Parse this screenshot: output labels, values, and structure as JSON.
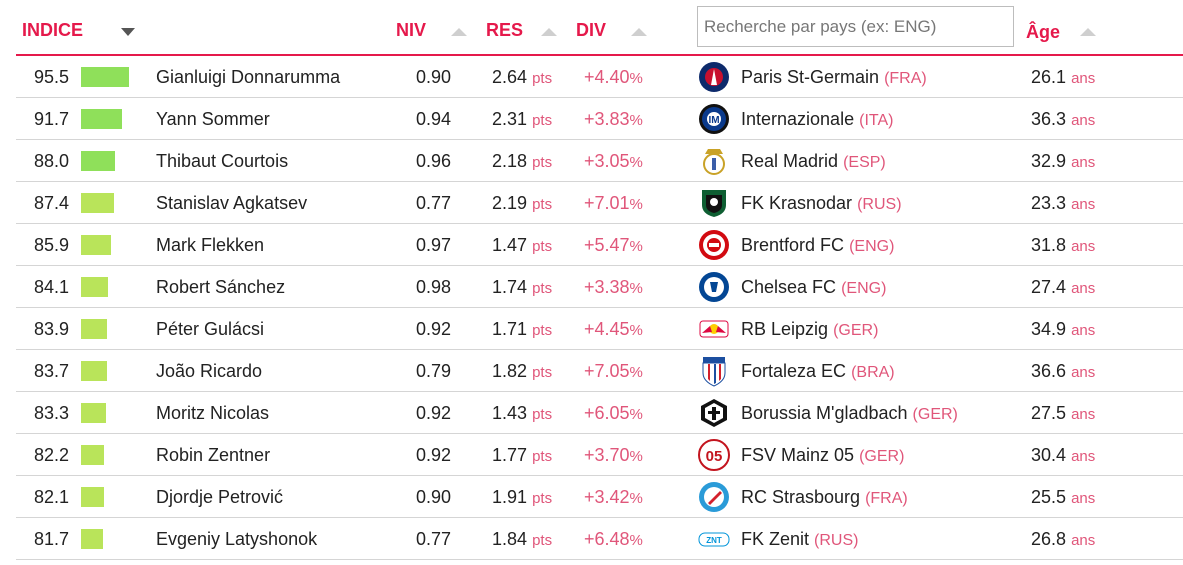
{
  "header": {
    "indice": "INDICE",
    "niv": "NIV",
    "res": "RES",
    "div": "DIV",
    "age": "Âge",
    "search_placeholder": "Recherche par pays (ex: ENG)"
  },
  "units": {
    "pts": "pts",
    "pct": "%",
    "ans": "ans"
  },
  "colors": {
    "accent": "#e5194b",
    "bar_high": "#8fe05a",
    "bar_low": "#b9e45a"
  },
  "rows": [
    {
      "index": "95.5",
      "bar": 0.955,
      "name": "Gianluigi Donnarumma",
      "niv": "0.90",
      "res": "2.64",
      "div": "+4.40",
      "logo": "psg-crest-icon",
      "club": "Paris St-Germain",
      "country": "(FRA)",
      "age": "26.1"
    },
    {
      "index": "91.7",
      "bar": 0.917,
      "name": "Yann Sommer",
      "niv": "0.94",
      "res": "2.31",
      "div": "+3.83",
      "logo": "inter-crest-icon",
      "club": "Internazionale",
      "country": "(ITA)",
      "age": "36.3"
    },
    {
      "index": "88.0",
      "bar": 0.88,
      "name": "Thibaut Courtois",
      "niv": "0.96",
      "res": "2.18",
      "div": "+3.05",
      "logo": "real-madrid-crest-icon",
      "club": "Real Madrid",
      "country": "(ESP)",
      "age": "32.9"
    },
    {
      "index": "87.4",
      "bar": 0.874,
      "name": "Stanislav Agkatsev",
      "niv": "0.77",
      "res": "2.19",
      "div": "+7.01",
      "logo": "krasnodar-crest-icon",
      "club": "FK Krasnodar",
      "country": "(RUS)",
      "age": "23.3"
    },
    {
      "index": "85.9",
      "bar": 0.859,
      "name": "Mark Flekken",
      "niv": "0.97",
      "res": "1.47",
      "div": "+5.47",
      "logo": "brentford-crest-icon",
      "club": "Brentford FC",
      "country": "(ENG)",
      "age": "31.8"
    },
    {
      "index": "84.1",
      "bar": 0.841,
      "name": "Robert Sánchez",
      "niv": "0.98",
      "res": "1.74",
      "div": "+3.38",
      "logo": "chelsea-crest-icon",
      "club": "Chelsea FC",
      "country": "(ENG)",
      "age": "27.4"
    },
    {
      "index": "83.9",
      "bar": 0.839,
      "name": "Péter Gulácsi",
      "niv": "0.92",
      "res": "1.71",
      "div": "+4.45",
      "logo": "rb-leipzig-crest-icon",
      "club": "RB Leipzig",
      "country": "(GER)",
      "age": "34.9"
    },
    {
      "index": "83.7",
      "bar": 0.837,
      "name": "João Ricardo",
      "niv": "0.79",
      "res": "1.82",
      "div": "+7.05",
      "logo": "fortaleza-crest-icon",
      "club": "Fortaleza EC",
      "country": "(BRA)",
      "age": "36.6"
    },
    {
      "index": "83.3",
      "bar": 0.833,
      "name": "Moritz Nicolas",
      "niv": "0.92",
      "res": "1.43",
      "div": "+6.05",
      "logo": "gladbach-crest-icon",
      "club": "Borussia M'gladbach",
      "country": "(GER)",
      "age": "27.5"
    },
    {
      "index": "82.2",
      "bar": 0.822,
      "name": "Robin Zentner",
      "niv": "0.92",
      "res": "1.77",
      "div": "+3.70",
      "logo": "mainz-crest-icon",
      "club": "FSV Mainz 05",
      "country": "(GER)",
      "age": "30.4"
    },
    {
      "index": "82.1",
      "bar": 0.821,
      "name": "Djordje Petrović",
      "niv": "0.90",
      "res": "1.91",
      "div": "+3.42",
      "logo": "strasbourg-crest-icon",
      "club": "RC Strasbourg",
      "country": "(FRA)",
      "age": "25.5"
    },
    {
      "index": "81.7",
      "bar": 0.817,
      "name": "Evgeniy Latyshonok",
      "niv": "0.77",
      "res": "1.84",
      "div": "+6.48",
      "logo": "zenit-crest-icon",
      "club": "FK Zenit",
      "country": "(RUS)",
      "age": "26.8"
    }
  ]
}
